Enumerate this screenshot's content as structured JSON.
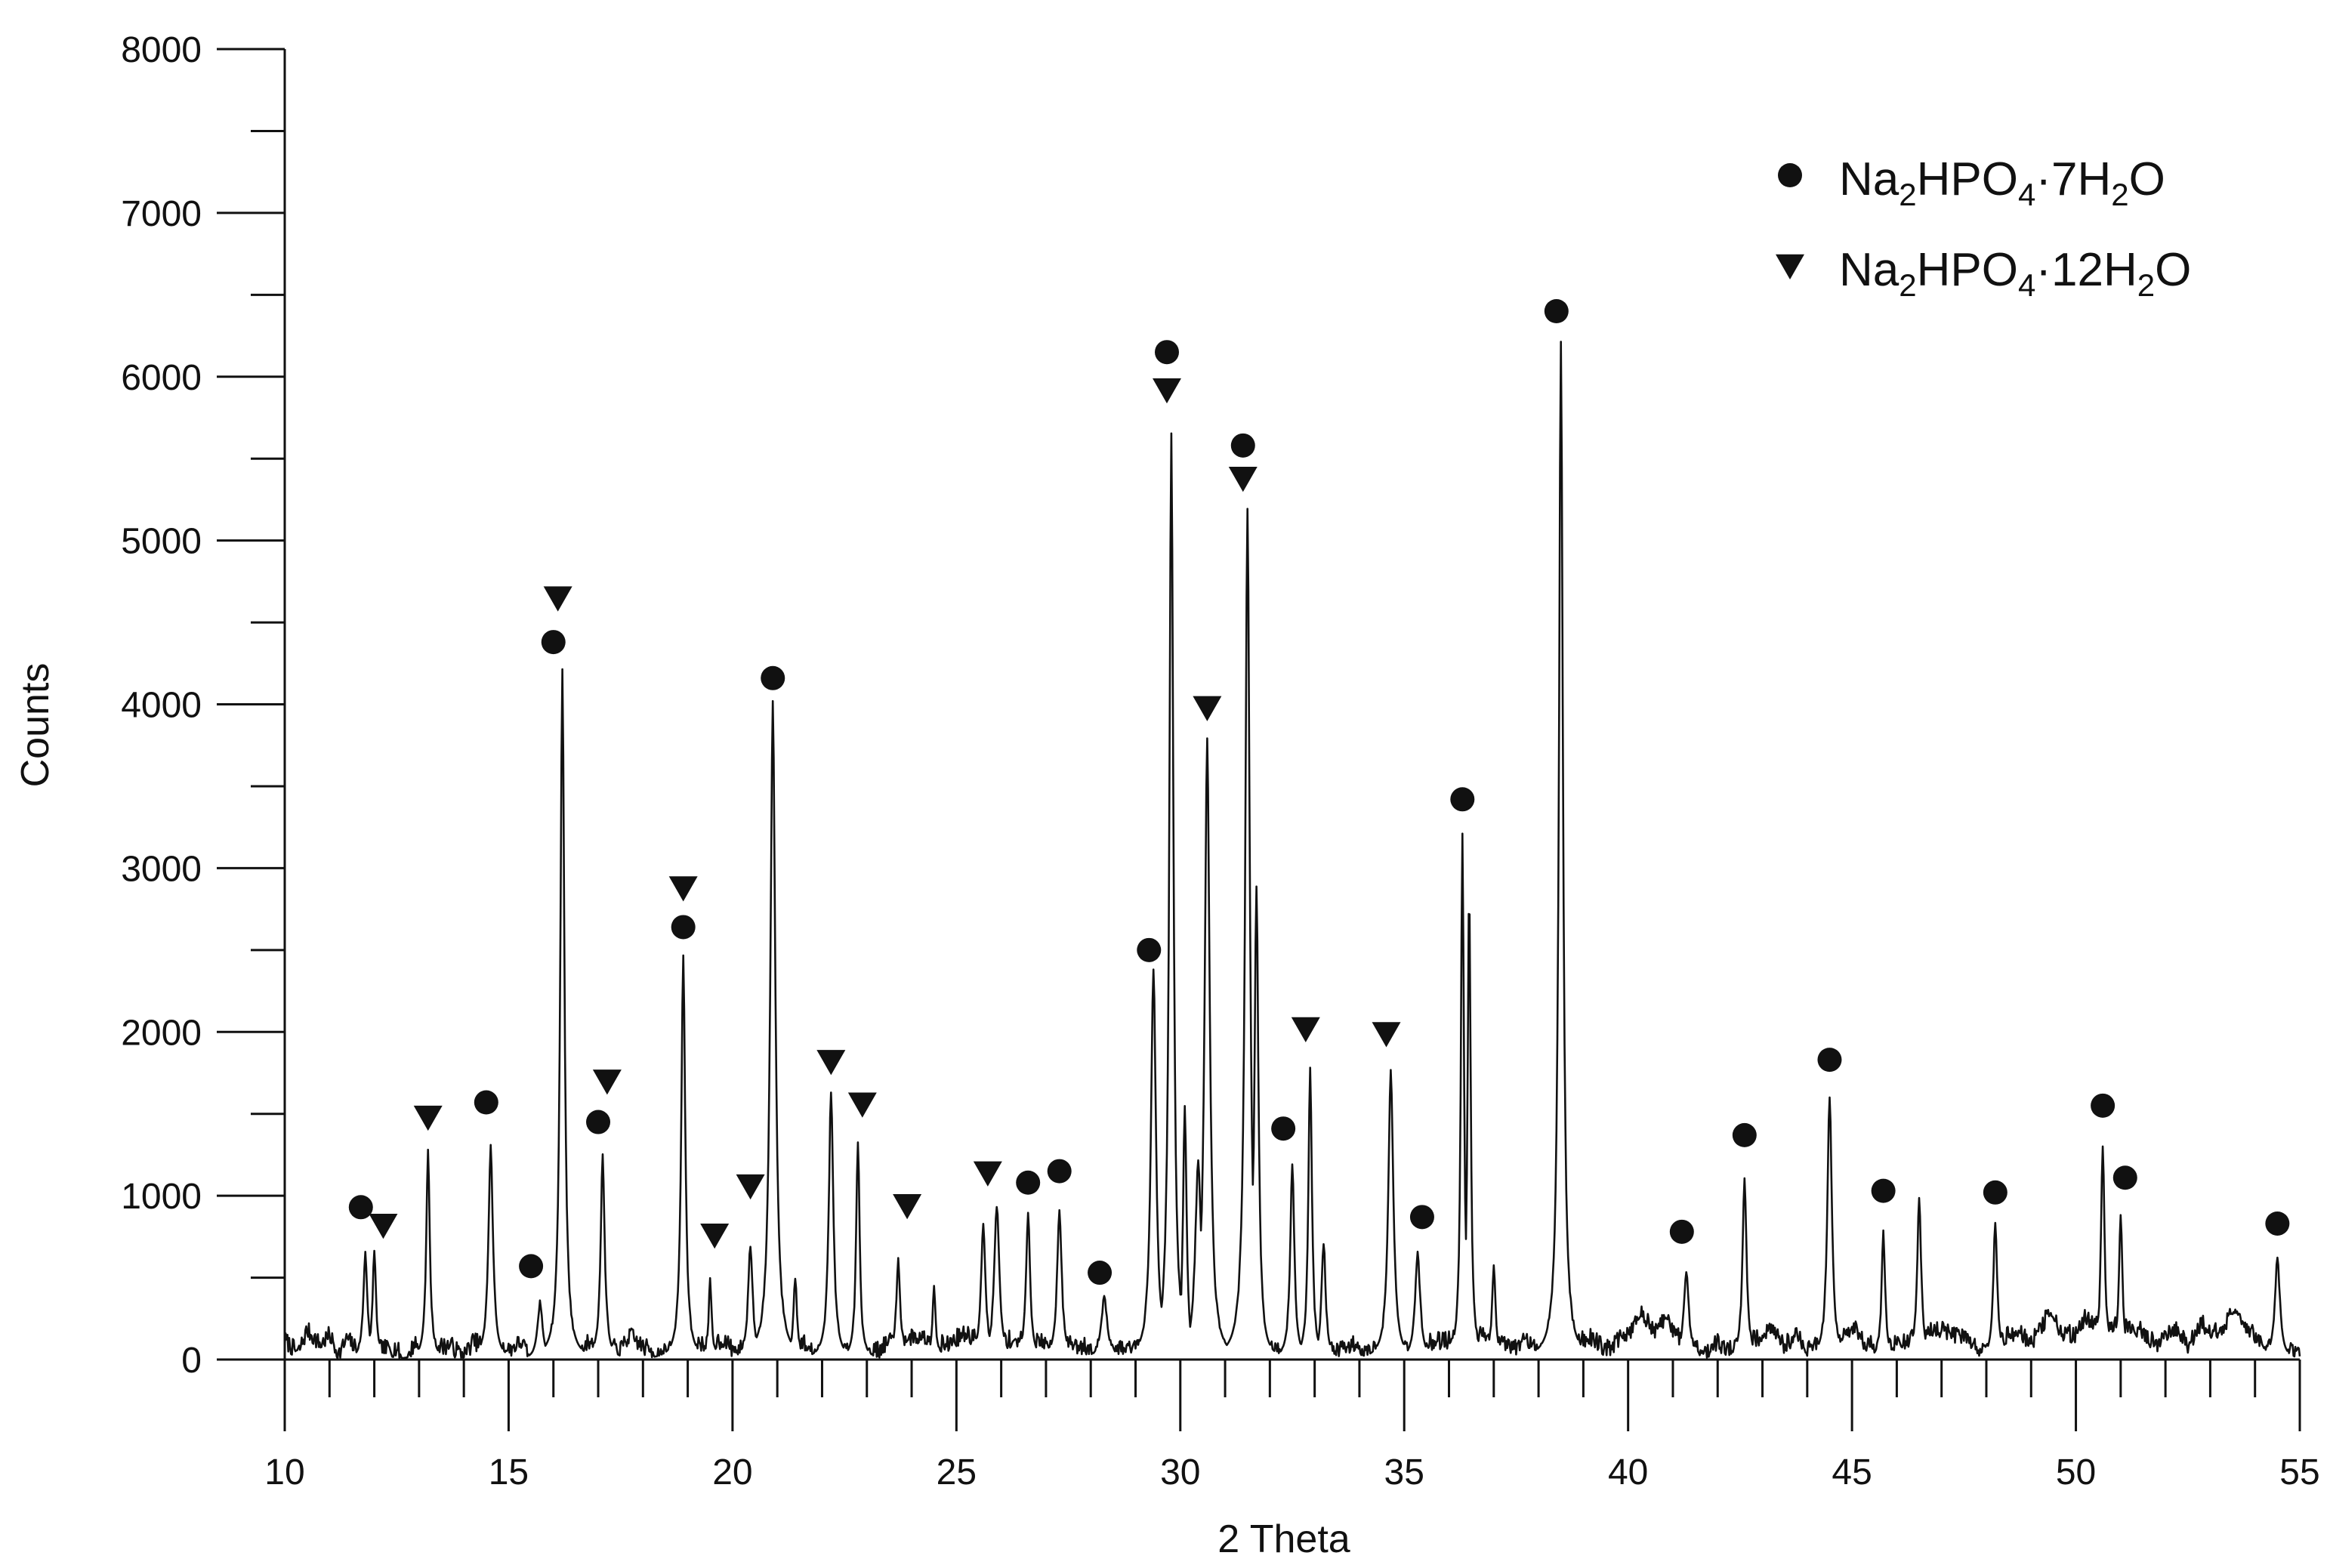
{
  "chart_data": {
    "type": "line",
    "xlabel": "2 Theta",
    "ylabel": "Counts",
    "xlim": [
      10,
      55
    ],
    "ylim": [
      0,
      8000
    ],
    "x_ticks": [
      10,
      15,
      20,
      25,
      30,
      35,
      40,
      45,
      50,
      55
    ],
    "x_minor_step": 1,
    "y_ticks": [
      0,
      1000,
      2000,
      3000,
      4000,
      5000,
      6000,
      7000,
      8000
    ],
    "y_minor_step": 500,
    "grid": false,
    "legend_position": "top-right",
    "line_color": "#111111",
    "baseline_noise": [
      [
        10.0,
        120
      ],
      [
        10.3,
        40
      ],
      [
        10.5,
        180
      ],
      [
        10.8,
        90
      ],
      [
        11.0,
        150
      ],
      [
        11.2,
        30
      ],
      [
        11.4,
        130
      ],
      [
        11.6,
        60
      ],
      [
        12.5,
        70
      ],
      [
        12.7,
        -40
      ],
      [
        12.9,
        110
      ],
      [
        13.0,
        60
      ],
      [
        13.7,
        90
      ],
      [
        14.0,
        20
      ],
      [
        14.2,
        110
      ],
      [
        15.0,
        60
      ],
      [
        15.3,
        110
      ],
      [
        15.5,
        -30
      ],
      [
        16.6,
        60
      ],
      [
        16.8,
        110
      ],
      [
        17.5,
        60
      ],
      [
        17.7,
        150
      ],
      [
        18.0,
        80
      ],
      [
        18.3,
        40
      ],
      [
        19.8,
        120
      ],
      [
        20.0,
        60
      ],
      [
        21.6,
        100
      ],
      [
        21.8,
        40
      ],
      [
        23.3,
        60
      ],
      [
        23.5,
        120
      ],
      [
        24.2,
        140
      ],
      [
        24.8,
        90
      ],
      [
        25.1,
        150
      ],
      [
        28.7,
        60
      ],
      [
        29.0,
        80
      ],
      [
        33.6,
        60
      ],
      [
        33.9,
        100
      ],
      [
        34.2,
        50
      ],
      [
        36.9,
        160
      ],
      [
        37.4,
        70
      ],
      [
        37.7,
        110
      ],
      [
        38.0,
        50
      ],
      [
        39.2,
        140
      ],
      [
        39.5,
        60
      ],
      [
        40.0,
        160
      ],
      [
        40.3,
        280
      ],
      [
        40.6,
        180
      ],
      [
        40.9,
        260
      ],
      [
        41.0,
        160
      ],
      [
        41.8,
        40
      ],
      [
        42.0,
        120
      ],
      [
        42.2,
        50
      ],
      [
        43.2,
        170
      ],
      [
        43.5,
        90
      ],
      [
        43.8,
        160
      ],
      [
        44.0,
        60
      ],
      [
        45.1,
        200
      ],
      [
        45.3,
        90
      ],
      [
        46.1,
        110
      ],
      [
        47.0,
        190
      ],
      [
        47.6,
        120
      ],
      [
        47.8,
        60
      ],
      [
        48.7,
        180
      ],
      [
        49.0,
        100
      ],
      [
        49.4,
        280
      ],
      [
        49.7,
        170
      ],
      [
        50.0,
        150
      ],
      [
        50.2,
        250
      ],
      [
        51.5,
        180
      ],
      [
        51.8,
        80
      ],
      [
        52.2,
        200
      ],
      [
        52.5,
        90
      ],
      [
        52.8,
        220
      ],
      [
        53.2,
        160
      ],
      [
        53.5,
        280
      ],
      [
        53.9,
        180
      ],
      [
        54.1,
        110
      ],
      [
        54.9,
        40
      ],
      [
        55.0,
        20
      ]
    ],
    "peaks": [
      [
        11.8,
        650,
        0.08
      ],
      [
        12.0,
        650,
        0.07
      ],
      [
        13.2,
        1280,
        0.07
      ],
      [
        14.6,
        1300,
        0.09
      ],
      [
        15.7,
        350,
        0.1
      ],
      [
        16.2,
        4200,
        0.08
      ],
      [
        17.1,
        1250,
        0.08
      ],
      [
        18.9,
        2450,
        0.08
      ],
      [
        19.5,
        480,
        0.06
      ],
      [
        20.4,
        700,
        0.09
      ],
      [
        20.9,
        4000,
        0.1
      ],
      [
        21.4,
        500,
        0.07
      ],
      [
        22.2,
        1620,
        0.09
      ],
      [
        22.8,
        1320,
        0.07
      ],
      [
        23.7,
        600,
        0.08
      ],
      [
        24.5,
        450,
        0.06
      ],
      [
        25.6,
        820,
        0.09
      ],
      [
        25.9,
        950,
        0.1
      ],
      [
        26.6,
        900,
        0.08
      ],
      [
        27.3,
        920,
        0.09
      ],
      [
        28.3,
        380,
        0.12
      ],
      [
        29.4,
        2380,
        0.1
      ],
      [
        29.8,
        5650,
        0.08
      ],
      [
        30.1,
        1550,
        0.07
      ],
      [
        30.4,
        1200,
        0.12
      ],
      [
        30.6,
        3800,
        0.1
      ],
      [
        31.5,
        5180,
        0.09
      ],
      [
        31.7,
        2900,
        0.08
      ],
      [
        32.5,
        1200,
        0.08
      ],
      [
        32.9,
        1780,
        0.07
      ],
      [
        33.2,
        720,
        0.08
      ],
      [
        34.7,
        1760,
        0.1
      ],
      [
        35.3,
        650,
        0.1
      ],
      [
        36.3,
        3200,
        0.06
      ],
      [
        36.45,
        2900,
        0.06
      ],
      [
        37.0,
        580,
        0.07
      ],
      [
        38.5,
        6200,
        0.08
      ],
      [
        41.3,
        550,
        0.1
      ],
      [
        42.6,
        1100,
        0.08
      ],
      [
        44.5,
        1600,
        0.09
      ],
      [
        45.7,
        780,
        0.07
      ],
      [
        46.5,
        980,
        0.08
      ],
      [
        48.2,
        820,
        0.08
      ],
      [
        50.6,
        1320,
        0.07
      ],
      [
        51.0,
        900,
        0.07
      ],
      [
        54.5,
        620,
        0.1
      ]
    ],
    "series": [
      {
        "name": "Na₂HPO₄·7H₂O",
        "marker": "circle",
        "points": [
          [
            11.7,
            930
          ],
          [
            14.5,
            1570
          ],
          [
            15.5,
            570
          ],
          [
            16.0,
            4380
          ],
          [
            17.0,
            1450
          ],
          [
            18.9,
            2640
          ],
          [
            20.9,
            4160
          ],
          [
            26.6,
            1080
          ],
          [
            27.3,
            1150
          ],
          [
            28.2,
            530
          ],
          [
            29.3,
            2500
          ],
          [
            29.7,
            6150
          ],
          [
            31.4,
            5580
          ],
          [
            32.3,
            1410
          ],
          [
            35.4,
            870
          ],
          [
            36.3,
            3420
          ],
          [
            38.4,
            6400
          ],
          [
            41.2,
            780
          ],
          [
            42.6,
            1370
          ],
          [
            44.5,
            1830
          ],
          [
            45.7,
            1030
          ],
          [
            48.2,
            1020
          ],
          [
            50.6,
            1550
          ],
          [
            51.1,
            1110
          ],
          [
            54.5,
            830
          ]
        ]
      },
      {
        "name": "Na₂HPO₄·12H₂O",
        "marker": "triangle-down",
        "points": [
          [
            12.2,
            820
          ],
          [
            13.2,
            1480
          ],
          [
            16.1,
            4650
          ],
          [
            17.2,
            1700
          ],
          [
            18.9,
            2880
          ],
          [
            19.6,
            760
          ],
          [
            20.4,
            1060
          ],
          [
            22.2,
            1820
          ],
          [
            22.9,
            1560
          ],
          [
            23.9,
            940
          ],
          [
            25.7,
            1140
          ],
          [
            29.7,
            5920
          ],
          [
            30.6,
            3980
          ],
          [
            31.4,
            5380
          ],
          [
            32.8,
            2020
          ],
          [
            34.6,
            1990
          ]
        ]
      }
    ],
    "legend": [
      {
        "marker": "circle",
        "base": "Na",
        "s1": "2",
        "mid": "HPO",
        "s2": "4",
        "tail": "·7H",
        "s3": "2",
        "end": "O"
      },
      {
        "marker": "triangle-down",
        "base": "Na",
        "s1": "2",
        "mid": "HPO",
        "s2": "4",
        "tail": "·12H",
        "s3": "2",
        "end": "O"
      }
    ]
  }
}
